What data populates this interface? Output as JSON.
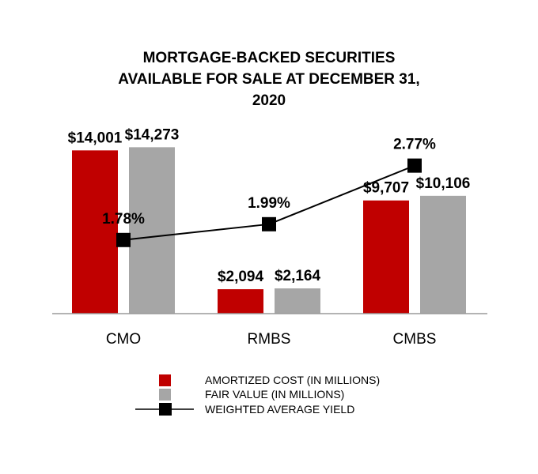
{
  "chart_data": {
    "type": "bar",
    "title_lines": [
      "MORTGAGE-BACKED SECURITIES",
      "AVAILABLE FOR SALE AT DECEMBER 31,",
      "2020"
    ],
    "categories": [
      "CMO",
      "RMBS",
      "CMBS"
    ],
    "series": [
      {
        "name": "AMORTIZED COST (IN MILLIONS)",
        "type": "bar",
        "color": "#c00000",
        "values": [
          14001,
          2094,
          9707
        ],
        "labels": [
          "$14,001",
          "$2,094",
          "$9,707"
        ]
      },
      {
        "name": "FAIR VALUE (IN MILLIONS)",
        "type": "bar",
        "color": "#a6a6a6",
        "values": [
          14273,
          2164,
          10106
        ],
        "labels": [
          "$14,273",
          "$2,164",
          "$10,106"
        ]
      },
      {
        "name": "WEIGHTED AVERAGE YIELD",
        "type": "line",
        "color": "#000000",
        "values": [
          1.78,
          1.99,
          2.77
        ],
        "labels": [
          "1.78%",
          "1.99%",
          "2.77%"
        ]
      }
    ],
    "ylim": [
      0,
      14500
    ],
    "yield_lim": [
      0.8,
      3.05
    ],
    "legend_position": "bottom",
    "grid": false
  }
}
